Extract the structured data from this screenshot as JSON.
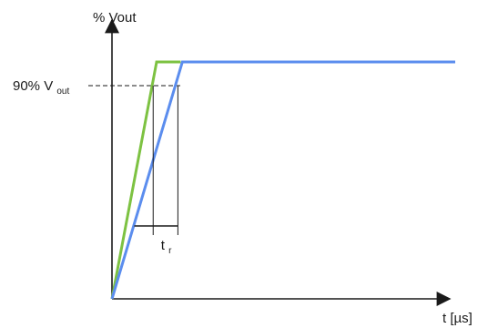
{
  "chart_data": {
    "type": "line",
    "title": "",
    "ylabel": "% Vout",
    "xlabel": "t [µs]",
    "ylim": [
      0,
      100
    ],
    "xlim": [
      0,
      100
    ],
    "reference_level": {
      "value": 90,
      "label_main": "90% V",
      "label_sub": "out"
    },
    "series": [
      {
        "color": "#7dc242",
        "x": [
          0,
          13,
          20,
          20
        ],
        "y": [
          0,
          100,
          100,
          100
        ]
      },
      {
        "color": "#5b8dee",
        "x": [
          0,
          20.5,
          100
        ],
        "y": [
          0,
          100,
          100
        ]
      }
    ],
    "rise_time": {
      "label_main": "t",
      "label_sub": "r",
      "x_start": 12,
      "x_end": 19.2,
      "bracket_left": 6.5
    },
    "grid": false,
    "legend": "none"
  }
}
